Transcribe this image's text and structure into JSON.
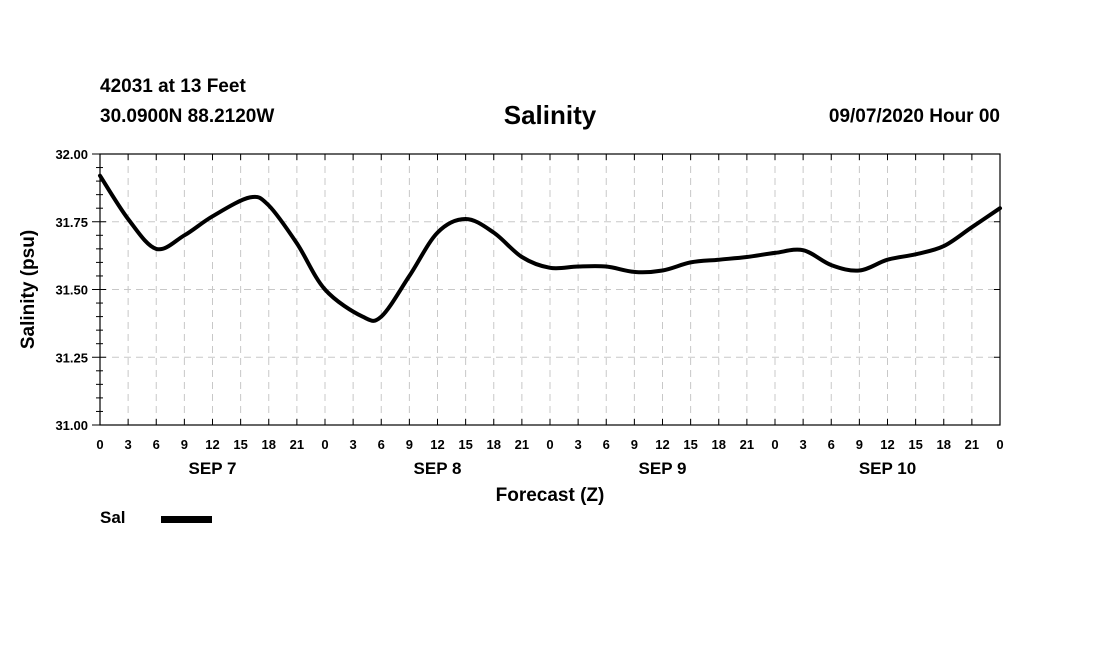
{
  "header": {
    "station": "42031 at 13 Feet",
    "coords": "30.0900N 88.2120W",
    "title": "Salinity",
    "datetime": "09/07/2020 Hour 00"
  },
  "legend": {
    "label": "Sal",
    "color": "#000000"
  },
  "chart_data": {
    "type": "line",
    "title": "Salinity",
    "xlabel": "Forecast (Z)",
    "ylabel": "Salinity (psu)",
    "ylim": [
      31.0,
      32.0
    ],
    "xlim": [
      0,
      96
    ],
    "yticks": [
      "31.00",
      "31.25",
      "31.50",
      "31.75",
      "32.00"
    ],
    "xtick_labels": [
      "0",
      "3",
      "6",
      "9",
      "12",
      "15",
      "18",
      "21",
      "0",
      "3",
      "6",
      "9",
      "12",
      "15",
      "18",
      "21",
      "0",
      "3",
      "6",
      "9",
      "12",
      "15",
      "18",
      "21",
      "0",
      "3",
      "6",
      "9",
      "12",
      "15",
      "18",
      "21",
      "0"
    ],
    "date_labels": [
      "SEP 7",
      "SEP 8",
      "SEP 9",
      "SEP 10"
    ],
    "grid": true,
    "legend_position": "bottom-left",
    "series": [
      {
        "name": "Sal",
        "color": "#000000",
        "x": [
          0,
          3,
          6,
          9,
          12,
          16,
          18,
          21,
          24,
          28,
          30,
          33,
          36,
          39,
          42,
          45,
          48,
          51,
          54,
          57,
          60,
          63,
          66,
          69,
          72,
          75,
          78,
          81,
          84,
          87,
          90,
          93,
          96
        ],
        "y": [
          31.92,
          31.76,
          31.65,
          31.7,
          31.77,
          31.84,
          31.81,
          31.67,
          31.5,
          31.4,
          31.4,
          31.55,
          31.71,
          31.76,
          31.71,
          31.62,
          31.58,
          31.585,
          31.585,
          31.565,
          31.57,
          31.6,
          31.61,
          31.62,
          31.635,
          31.645,
          31.59,
          31.57,
          31.61,
          31.63,
          31.66,
          31.73,
          31.8
        ]
      }
    ]
  }
}
